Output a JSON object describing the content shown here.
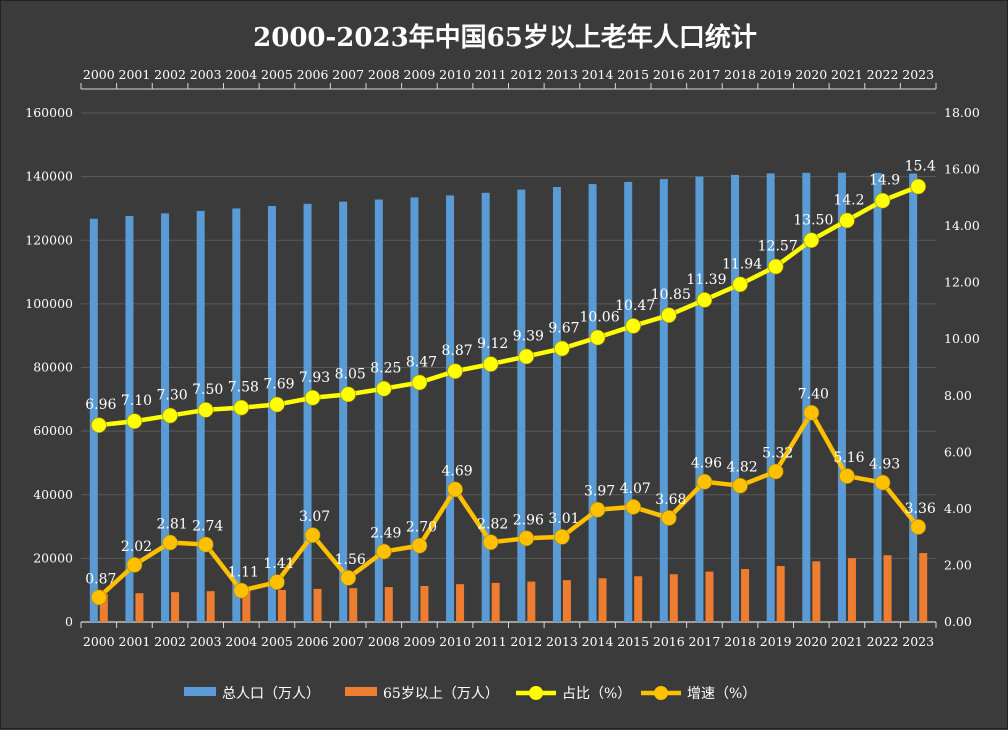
{
  "title": "2000-2023年中国65岁以上老年人口统计",
  "colors": {
    "total_bar": "#5b9bd5",
    "elder_bar": "#ed7d31",
    "share_line": "#ffff00",
    "growth_line": "#ffc000",
    "background": "#3b3b3b",
    "axis": "#d9d9d9"
  },
  "chart_data": {
    "type": "bar",
    "categories": [
      "2000",
      "2001",
      "2002",
      "2003",
      "2004",
      "2005",
      "2006",
      "2007",
      "2008",
      "2009",
      "2010",
      "2011",
      "2012",
      "2013",
      "2014",
      "2015",
      "2016",
      "2017",
      "2018",
      "2019",
      "2020",
      "2021",
      "2022",
      "2023"
    ],
    "left_axis": {
      "ticks": [
        "0",
        "20000",
        "40000",
        "60000",
        "80000",
        "100000",
        "120000",
        "140000",
        "160000"
      ],
      "ylim": [
        0,
        160000
      ]
    },
    "right_axis": {
      "ticks": [
        "0.00",
        "2.00",
        "4.00",
        "6.00",
        "8.00",
        "10.00",
        "12.00",
        "14.00",
        "16.00",
        "18.00"
      ],
      "ylim": [
        0,
        18
      ]
    },
    "legend_position": "bottom",
    "grid": "horizontal",
    "series": [
      {
        "name": "总人口（万人）",
        "type": "bar",
        "axis": "left",
        "values": [
          126743,
          127627,
          128453,
          129227,
          129988,
          130756,
          131448,
          132129,
          132802,
          133450,
          134091,
          134916,
          135922,
          136726,
          137646,
          138326,
          139232,
          140011,
          140541,
          141008,
          141212,
          141260,
          141175,
          140967
        ]
      },
      {
        "name": "65岁以上（万人）",
        "type": "bar",
        "axis": "left",
        "values": [
          8821,
          9062,
          9377,
          9692,
          9857,
          10055,
          10419,
          10636,
          10956,
          11307,
          11894,
          12288,
          12714,
          13161,
          13755,
          14386,
          15003,
          15831,
          16658,
          17603,
          19064,
          20056,
          20978,
          21676
        ]
      },
      {
        "name": "占比（%）",
        "type": "line",
        "axis": "right",
        "values": [
          6.96,
          7.1,
          7.3,
          7.5,
          7.58,
          7.69,
          7.93,
          8.05,
          8.25,
          8.47,
          8.87,
          9.12,
          9.39,
          9.67,
          10.06,
          10.47,
          10.85,
          11.39,
          11.94,
          12.57,
          13.5,
          14.2,
          14.9,
          15.4
        ],
        "labels": [
          "6.96",
          "7.10",
          "7.30",
          "7.50",
          "7.58",
          "7.69",
          "7.93",
          "8.05",
          "8.25",
          "8.47",
          "8.87",
          "9.12",
          "9.39",
          "9.67",
          "10.06",
          "10.47",
          "10.85",
          "11.39",
          "11.94",
          "12.57",
          "13.50",
          "14.2",
          "14.9",
          "15.4"
        ]
      },
      {
        "name": "增速（%）",
        "type": "line",
        "axis": "right",
        "values": [
          0.87,
          2.02,
          2.81,
          2.74,
          1.11,
          1.41,
          3.07,
          1.56,
          2.49,
          2.7,
          4.69,
          2.82,
          2.96,
          3.01,
          3.97,
          4.07,
          3.68,
          4.96,
          4.82,
          5.32,
          7.4,
          5.16,
          4.93,
          3.36
        ],
        "labels": [
          "0.87",
          "2.02",
          "2.81",
          "2.74",
          "1.11",
          "1.41",
          "3.07",
          "1.56",
          "2.49",
          "2.70",
          "4.69",
          "2.82",
          "2.96",
          "3.01",
          "3.97",
          "4.07",
          "3.68",
          "4.96",
          "4.82",
          "5.32",
          "7.40",
          "5.16",
          "4.93",
          "3.36"
        ]
      }
    ]
  }
}
